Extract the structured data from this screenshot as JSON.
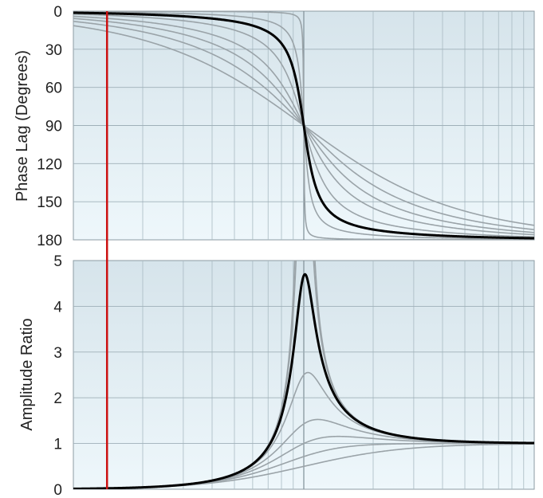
{
  "chart_data": [
    {
      "id": "phase",
      "type": "line",
      "title": "",
      "ylabel": "Phase Lag (Degrees)",
      "ylim": [
        0,
        180
      ],
      "y_inverted": true,
      "y_ticks": [
        0,
        30,
        60,
        90,
        120,
        150,
        180
      ],
      "x_scale": "log",
      "xlim_ratio": [
        0.1,
        10
      ],
      "grid": true,
      "damping_ratios": [
        0.005,
        0.05,
        0.107,
        0.2,
        0.35,
        0.5,
        0.7,
        1.0
      ],
      "highlighted_damping_ratio": 0.107
    },
    {
      "id": "amplitude",
      "type": "line",
      "title": "",
      "ylabel": "Amplitude Ratio",
      "ylim": [
        0,
        5
      ],
      "y_ticks": [
        0,
        1,
        2,
        3,
        4,
        5
      ],
      "x_scale": "log",
      "xlim_ratio": [
        0.1,
        10
      ],
      "grid": true,
      "damping_ratios": [
        0.005,
        0.05,
        0.107,
        0.2,
        0.35,
        0.5,
        0.7,
        1.0
      ],
      "highlighted_damping_ratio": 0.107,
      "peak_value": 4.7
    }
  ],
  "marker": {
    "frequency_ratio": 0.14,
    "color": "#cc1111"
  },
  "colors": {
    "curves": "#9aa3a8",
    "highlight": "#000000",
    "grid": "#9fb0b8",
    "plot_bg_top": "#d9e7ee",
    "plot_bg_bottom": "#eef6fa"
  }
}
